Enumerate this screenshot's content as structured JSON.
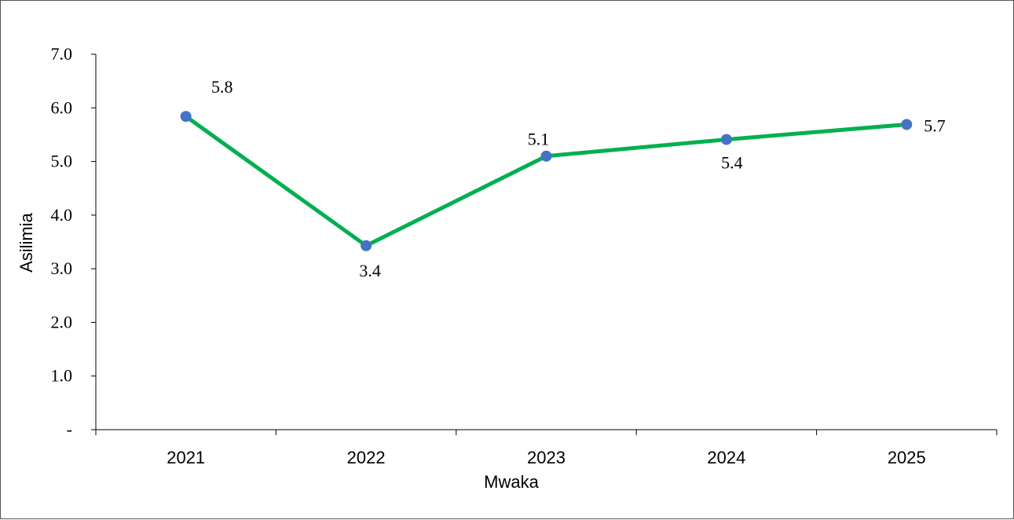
{
  "chart_data": {
    "type": "line",
    "title": "",
    "xlabel": "Mwaka",
    "ylabel": "Asilimia",
    "categories": [
      "2021",
      "2022",
      "2023",
      "2024",
      "2025"
    ],
    "series": [
      {
        "values": [
          5.84,
          3.43,
          5.1,
          5.41,
          5.69
        ],
        "data_labels": [
          "5.8",
          "3.4",
          "5.1",
          "5.4",
          "5.7"
        ],
        "line_color": "#00b050",
        "marker_color": "#4472c4"
      }
    ],
    "ylim": [
      0,
      7
    ],
    "yticks": [
      {
        "value": 0,
        "label": "-"
      },
      {
        "value": 1,
        "label": "1.0"
      },
      {
        "value": 2,
        "label": "2.0"
      },
      {
        "value": 3,
        "label": "3.0"
      },
      {
        "value": 4,
        "label": "4.0"
      },
      {
        "value": 5,
        "label": "5.0"
      },
      {
        "value": 6,
        "label": "6.0"
      },
      {
        "value": 7,
        "label": "7.0"
      }
    ],
    "grid": false,
    "legend": "none"
  }
}
